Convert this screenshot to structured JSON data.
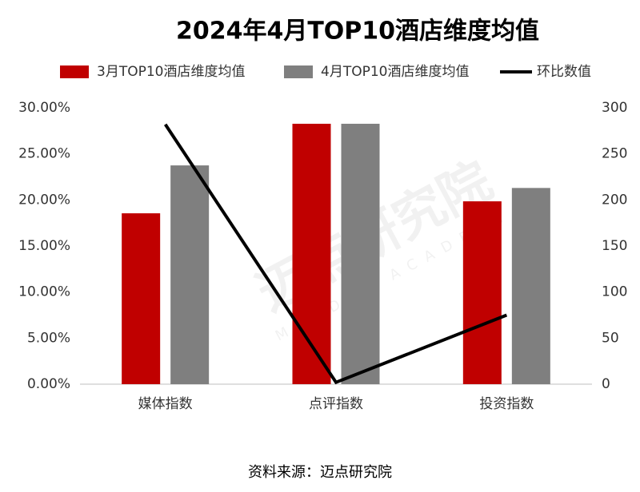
{
  "chart_data": {
    "type": "bar",
    "title": "2024年4月TOP10酒店维度均值",
    "categories": [
      "媒体指数",
      "点评指数",
      "投资指数"
    ],
    "series": [
      {
        "name": "3月TOP10酒店维度均值",
        "type": "bar",
        "color": "#c00000",
        "values": [
          18.55,
          28.27,
          19.85
        ]
      },
      {
        "name": "4月TOP10酒店维度均值",
        "type": "bar",
        "color": "#7f7f7f",
        "values": [
          23.75,
          28.27,
          21.3
        ]
      },
      {
        "name": "环比数值",
        "type": "line",
        "axis": "y2",
        "color": "#000000",
        "values": [
          282,
          2,
          75
        ]
      }
    ],
    "ylim": [
      0,
      30
    ],
    "yticks": [
      {
        "value": 0,
        "label": "0.00%"
      },
      {
        "value": 5,
        "label": "5.00%"
      },
      {
        "value": 10,
        "label": "10.00%"
      },
      {
        "value": 15,
        "label": "15.00%"
      },
      {
        "value": 20,
        "label": "20.00%"
      },
      {
        "value": 25,
        "label": "25.00%"
      },
      {
        "value": 30,
        "label": "30.00%"
      }
    ],
    "y2lim": [
      0,
      300
    ],
    "y2ticks": [
      0,
      50,
      100,
      150,
      200,
      250,
      300
    ],
    "grid": false,
    "legend": "top",
    "watermark": [
      "迈点研究院",
      "MEADIN ACADEMY"
    ],
    "source": "资料来源：迈点研究院"
  }
}
